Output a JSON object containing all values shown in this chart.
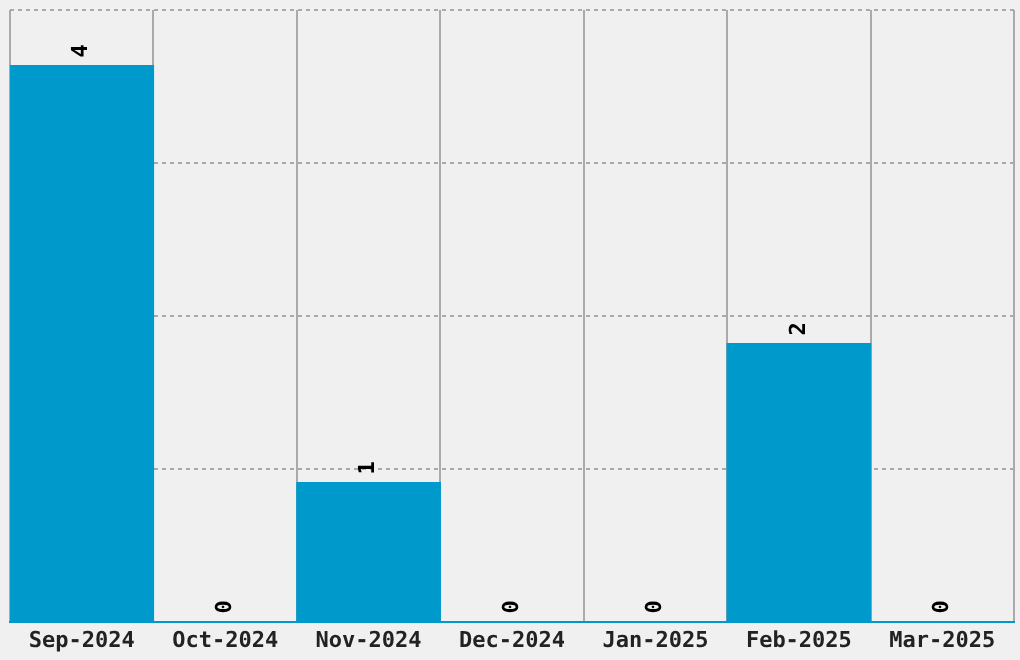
{
  "chart_data": {
    "type": "bar",
    "categories": [
      "Sep-2024",
      "Oct-2024",
      "Nov-2024",
      "Dec-2024",
      "Jan-2025",
      "Feb-2025",
      "Mar-2025"
    ],
    "values": [
      4,
      0,
      1,
      0,
      0,
      2,
      0
    ],
    "color": "#0099cc",
    "data_labels": true,
    "grid": true,
    "tick_labels": "x",
    "ylim": [
      0,
      4.4
    ],
    "yticks": [
      {
        "value": 0,
        "label": null
      },
      {
        "value": 1.1,
        "label": null
      },
      {
        "value": 2.2,
        "label": null
      },
      {
        "value": 3.3,
        "label": null
      },
      {
        "value": 4.4,
        "label": null
      }
    ]
  }
}
